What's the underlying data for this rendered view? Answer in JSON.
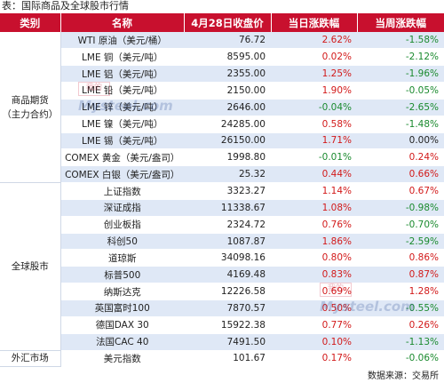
{
  "caption": "表：国际商品及全球股市行情",
  "headers": [
    "类别",
    "名称",
    "4月28日收盘价",
    "当日涨跌幅",
    "当周涨跌幅"
  ],
  "groups": [
    {
      "category": "商品期货\n（主力合约）",
      "rows": [
        {
          "name": "WTI 原油（美元/桶）",
          "price": "76.72",
          "daily": "2.62%",
          "weekly": "-1.58%"
        },
        {
          "name": "LME 铜（美元/吨）",
          "price": "8595.00",
          "daily": "0.02%",
          "weekly": "-2.12%"
        },
        {
          "name": "LME 铝（美元/吨）",
          "price": "2355.00",
          "daily": "1.25%",
          "weekly": "-1.96%"
        },
        {
          "name": "LME 铅（美元/吨）",
          "price": "2150.00",
          "daily": "1.90%",
          "weekly": "-0.05%"
        },
        {
          "name": "LME 锌（美元/吨）",
          "price": "2646.00",
          "daily": "-0.04%",
          "weekly": "-2.65%"
        },
        {
          "name": "LME 镍（美元/吨）",
          "price": "24285.00",
          "daily": "0.58%",
          "weekly": "-1.48%"
        },
        {
          "name": "LME 锡（美元/吨）",
          "price": "26150.00",
          "daily": "1.71%",
          "weekly": "0.00%"
        },
        {
          "name": "COMEX 黄金（美元/盎司）",
          "price": "1998.80",
          "daily": "-0.01%",
          "weekly": "0.24%"
        },
        {
          "name": "COMEX 白银（美元/盎司）",
          "price": "25.32",
          "daily": "0.44%",
          "weekly": "0.66%"
        }
      ]
    },
    {
      "category": "全球股市",
      "rows": [
        {
          "name": "上证指数",
          "price": "3323.27",
          "daily": "1.14%",
          "weekly": "0.67%"
        },
        {
          "name": "深证成指",
          "price": "11338.67",
          "daily": "1.08%",
          "weekly": "-0.98%"
        },
        {
          "name": "创业板指",
          "price": "2324.72",
          "daily": "0.76%",
          "weekly": "-0.70%"
        },
        {
          "name": "科创50",
          "price": "1087.87",
          "daily": "1.86%",
          "weekly": "-2.59%"
        },
        {
          "name": "道琼斯",
          "price": "34098.16",
          "daily": "0.80%",
          "weekly": "0.86%"
        },
        {
          "name": "标普500",
          "price": "4169.48",
          "daily": "0.83%",
          "weekly": "0.87%"
        },
        {
          "name": "纳斯达克",
          "price": "12226.58",
          "daily": "0.69%",
          "weekly": "1.28%"
        },
        {
          "name": "英国富时100",
          "price": "7870.57",
          "daily": "0.50%",
          "weekly": "-0.55%"
        },
        {
          "name": "德国DAX 30",
          "price": "15922.38",
          "daily": "0.77%",
          "weekly": "0.26%"
        },
        {
          "name": "法国CAC 40",
          "price": "7491.50",
          "daily": "0.10%",
          "weekly": "-1.13%"
        }
      ]
    },
    {
      "category": "外汇市场",
      "rows": [
        {
          "name": "美元指数",
          "price": "101.67",
          "daily": "0.17%",
          "weekly": "-0.06%"
        }
      ]
    }
  ],
  "source": "数据来源：交易所",
  "watermark": {
    "seal": "我的",
    "brand": "Mysteel.com"
  },
  "colors": {
    "header_bg": "#c8102e",
    "row_stripe": "#dfe8f6",
    "up": "#d21919",
    "down": "#1a8a2e"
  }
}
